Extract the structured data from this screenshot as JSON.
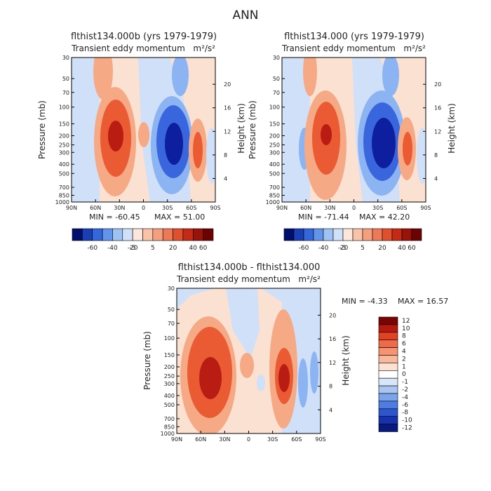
{
  "page": {
    "title": "ANN"
  },
  "colors": {
    "cold3": "#0d1f9e",
    "cold2": "#3a66dd",
    "cold1": "#8cb3f2",
    "cold0": "#cfe0f8",
    "warm0": "#fbe1d2",
    "warm1": "#f6a985",
    "warm2": "#ea5b33",
    "warm3": "#b81c12"
  },
  "chart_data": [
    {
      "type": "contour",
      "id": "panel1",
      "title": "flthist134.000b (yrs 1979-1979)",
      "subtitle": "Transient eddy momentum",
      "units": "m²/s²",
      "ylabel": "Pressure (mb)",
      "y2label": "Height (km)",
      "xticks": [
        "90N",
        "60N",
        "30N",
        "0",
        "30S",
        "60S",
        "90S"
      ],
      "yticks": [
        "30",
        "50",
        "70",
        "100",
        "150",
        "200",
        "250",
        "300",
        "400",
        "500",
        "700",
        "850",
        "1000"
      ],
      "y2ticks": [
        "20",
        "16",
        "12",
        "8",
        "4"
      ],
      "min_label": "MIN = -60.45",
      "max_label": "MAX = 51.00",
      "colorbar_levels": [
        "-60",
        "-40",
        "-20",
        "-5",
        "5",
        "20",
        "40",
        "60"
      ],
      "features": [
        {
          "lat": 33,
          "p": 220,
          "value": 51.0,
          "sign": "positive"
        },
        {
          "lat": -45,
          "p": 250,
          "value": -60.45,
          "sign": "negative"
        },
        {
          "lat": -62,
          "p": 280,
          "value": 25,
          "sign": "positive"
        }
      ]
    },
    {
      "type": "contour",
      "id": "panel2",
      "title": "flthist134.000 (yrs 1979-1979)",
      "subtitle": "Transient eddy momentum",
      "units": "m²/s²",
      "ylabel": "Pressure (mb)",
      "y2label": "Height (km)",
      "xticks": [
        "90N",
        "60N",
        "30N",
        "0",
        "30S",
        "60S",
        "90S"
      ],
      "yticks": [
        "30",
        "50",
        "70",
        "100",
        "150",
        "200",
        "250",
        "300",
        "400",
        "500",
        "700",
        "850",
        "1000"
      ],
      "y2ticks": [
        "20",
        "16",
        "12",
        "8",
        "4"
      ],
      "min_label": "MIN = -71.44",
      "max_label": "MAX = 42.20",
      "colorbar_levels": [
        "-60",
        "-40",
        "-20",
        "-5",
        "5",
        "20",
        "40",
        "60"
      ],
      "features": [
        {
          "lat": 33,
          "p": 210,
          "value": 42.2,
          "sign": "positive"
        },
        {
          "lat": -42,
          "p": 250,
          "value": -71.44,
          "sign": "negative"
        },
        {
          "lat": -62,
          "p": 280,
          "value": 22,
          "sign": "positive"
        }
      ]
    },
    {
      "type": "contour",
      "id": "panel3",
      "title": "flthist134.000b - flthist134.000",
      "subtitle": "Transient eddy momentum",
      "units": "m²/s²",
      "ylabel": "Pressure (mb)",
      "y2label": "Height (km)",
      "xticks": [
        "90N",
        "60N",
        "30N",
        "0",
        "30S",
        "60S",
        "90S"
      ],
      "yticks": [
        "30",
        "50",
        "70",
        "100",
        "150",
        "200",
        "250",
        "300",
        "400",
        "500",
        "700",
        "850",
        "1000"
      ],
      "y2ticks": [
        "20",
        "16",
        "12",
        "8",
        "4"
      ],
      "min_label": "MIN =   -4.33",
      "max_label": "MAX =   16.57",
      "colorbar_levels": [
        "12",
        "10",
        "8",
        "6",
        "4",
        "2",
        "1",
        "0",
        "-1",
        "-2",
        "-4",
        "-6",
        "-8",
        "-10",
        "-12"
      ],
      "features": [
        {
          "lat": 45,
          "p": 270,
          "value": 16.57,
          "sign": "positive"
        },
        {
          "lat": -48,
          "p": 270,
          "value": 12,
          "sign": "positive"
        },
        {
          "lat": -62,
          "p": 300,
          "value": -4.33,
          "sign": "negative"
        }
      ]
    }
  ]
}
